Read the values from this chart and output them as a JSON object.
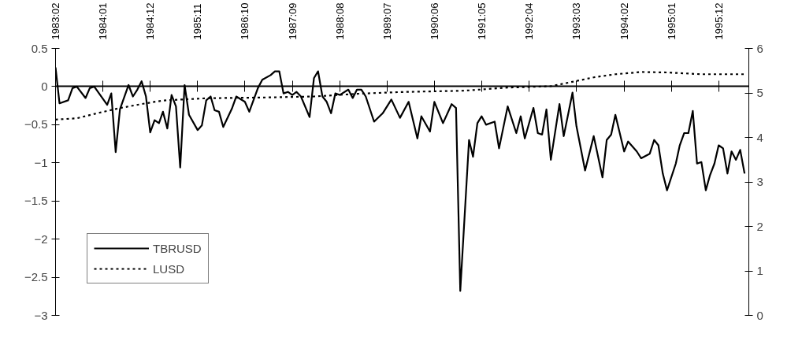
{
  "chart_data": {
    "type": "line",
    "xlim": [
      "1983-02",
      "1996-07"
    ],
    "xticks": [
      {
        "value": "1983-02",
        "label": "1983:02"
      },
      {
        "value": "1984-01",
        "label": "1984:01"
      },
      {
        "value": "1984-12",
        "label": "1984:12"
      },
      {
        "value": "1985-11",
        "label": "1985:11"
      },
      {
        "value": "1986-10",
        "label": "1986:10"
      },
      {
        "value": "1987-09",
        "label": "1987:09"
      },
      {
        "value": "1988-08",
        "label": "1988:08"
      },
      {
        "value": "1989-07",
        "label": "1989:07"
      },
      {
        "value": "1990-06",
        "label": "1990:06"
      },
      {
        "value": "1991-05",
        "label": "1991:05"
      },
      {
        "value": "1992-04",
        "label": "1992:04"
      },
      {
        "value": "1993-03",
        "label": "1993:03"
      },
      {
        "value": "1994-02",
        "label": "1994:02"
      },
      {
        "value": "1995-01",
        "label": "1995:01"
      },
      {
        "value": "1995-12",
        "label": "1995:12"
      }
    ],
    "ylim": [
      -3,
      0.5
    ],
    "yticks": [
      -3,
      -2.5,
      -2,
      -1.5,
      -1,
      -0.5,
      0,
      0.5
    ],
    "y2lim": [
      0,
      6
    ],
    "y2ticks": [
      0,
      1,
      2,
      3,
      4,
      5,
      6
    ],
    "legend": "bottom left",
    "marker": "none",
    "series": [
      {
        "name": "TBRUSD",
        "color": "#000000",
        "line_style": "solid",
        "x": [
          "1983-02",
          "1983-03",
          "1983-05",
          "1983-06",
          "1983-07",
          "1983-09",
          "1983-10",
          "1983-11",
          "1984-02",
          "1984-03",
          "1984-04",
          "1984-05",
          "1984-07",
          "1984-08",
          "1984-09",
          "1984-10",
          "1984-11",
          "1984-12",
          "1985-01",
          "1985-02",
          "1985-03",
          "1985-04",
          "1985-05",
          "1985-06",
          "1985-07",
          "1985-08",
          "1985-09",
          "1985-11",
          "1985-12",
          "1986-01",
          "1986-02",
          "1986-03",
          "1986-04",
          "1986-05",
          "1986-07",
          "1986-08",
          "1986-10",
          "1986-11",
          "1987-01",
          "1987-02",
          "1987-04",
          "1987-05",
          "1987-06",
          "1987-07",
          "1987-08",
          "1987-09",
          "1987-10",
          "1987-11",
          "1988-01",
          "1988-02",
          "1988-03",
          "1988-04",
          "1988-05",
          "1988-06",
          "1988-07",
          "1988-08",
          "1988-10",
          "1988-11",
          "1988-12",
          "1989-01",
          "1989-02",
          "1989-04",
          "1989-06",
          "1989-08",
          "1989-10",
          "1989-12",
          "1990-02",
          "1990-03",
          "1990-05",
          "1990-06",
          "1990-08",
          "1990-10",
          "1990-11",
          "1990-12",
          "1991-02",
          "1991-03",
          "1991-04",
          "1991-05",
          "1991-06",
          "1991-08",
          "1991-09",
          "1991-11",
          "1992-01",
          "1992-02",
          "1992-03",
          "1992-05",
          "1992-06",
          "1992-07",
          "1992-08",
          "1992-09",
          "1992-11",
          "1992-12",
          "1993-02",
          "1993-03",
          "1993-05",
          "1993-07",
          "1993-09",
          "1993-10",
          "1993-11",
          "1993-12",
          "1994-02",
          "1994-03",
          "1994-05",
          "1994-06",
          "1994-08",
          "1994-09",
          "1994-10",
          "1994-11",
          "1994-12",
          "1995-02",
          "1995-03",
          "1995-04",
          "1995-05",
          "1995-06",
          "1995-07",
          "1995-08",
          "1995-09",
          "1995-10",
          "1995-11",
          "1995-12",
          "1996-01",
          "1996-02",
          "1996-03",
          "1996-04",
          "1996-05",
          "1996-06"
        ],
        "values": [
          0.25,
          -0.22,
          -0.18,
          -0.02,
          0.0,
          -0.15,
          -0.02,
          0.0,
          -0.24,
          -0.09,
          -0.86,
          -0.3,
          0.02,
          -0.13,
          -0.04,
          0.07,
          -0.13,
          -0.6,
          -0.44,
          -0.48,
          -0.33,
          -0.55,
          -0.11,
          -0.26,
          -1.06,
          0.02,
          -0.37,
          -0.57,
          -0.51,
          -0.18,
          -0.13,
          -0.31,
          -0.33,
          -0.53,
          -0.29,
          -0.13,
          -0.2,
          -0.33,
          -0.02,
          0.09,
          0.15,
          0.2,
          0.2,
          -0.09,
          -0.07,
          -0.11,
          -0.07,
          -0.13,
          -0.4,
          0.11,
          0.2,
          -0.13,
          -0.2,
          -0.35,
          -0.09,
          -0.11,
          -0.04,
          -0.15,
          -0.04,
          -0.04,
          -0.13,
          -0.46,
          -0.35,
          -0.17,
          -0.41,
          -0.2,
          -0.68,
          -0.39,
          -0.59,
          -0.2,
          -0.48,
          -0.23,
          -0.28,
          -2.68,
          -0.7,
          -0.92,
          -0.48,
          -0.39,
          -0.5,
          -0.46,
          -0.81,
          -0.26,
          -0.61,
          -0.39,
          -0.68,
          -0.28,
          -0.61,
          -0.63,
          -0.3,
          -0.96,
          -0.23,
          -0.65,
          -0.08,
          -0.52,
          -1.1,
          -0.65,
          -1.19,
          -0.7,
          -0.63,
          -0.37,
          -0.85,
          -0.72,
          -0.85,
          -0.94,
          -0.88,
          -0.7,
          -0.77,
          -1.14,
          -1.36,
          -1.01,
          -0.77,
          -0.61,
          -0.61,
          -0.32,
          -1.01,
          -0.99,
          -1.36,
          -1.16,
          -1.01,
          -0.77,
          -0.81,
          -1.14,
          -0.85,
          -0.96,
          -0.83,
          -1.14
        ]
      },
      {
        "name": "LUSD",
        "color": "#000000",
        "line_style": "dotted",
        "axis": "y2",
        "x": [
          "1983-02",
          "1983-07",
          "1983-12",
          "1984-05",
          "1984-10",
          "1985-03",
          "1986-01",
          "1987-04",
          "1988-02",
          "1988-12",
          "1989-10",
          "1991-01",
          "1991-11",
          "1992-09",
          "1993-02",
          "1993-07",
          "1993-12",
          "1994-06",
          "1994-12",
          "1995-08",
          "1996-06"
        ],
        "values": [
          4.4,
          4.43,
          4.55,
          4.66,
          4.75,
          4.83,
          4.88,
          4.9,
          4.92,
          4.98,
          5.02,
          5.05,
          5.12,
          5.15,
          5.25,
          5.35,
          5.42,
          5.47,
          5.46,
          5.42,
          5.42
        ]
      }
    ]
  }
}
